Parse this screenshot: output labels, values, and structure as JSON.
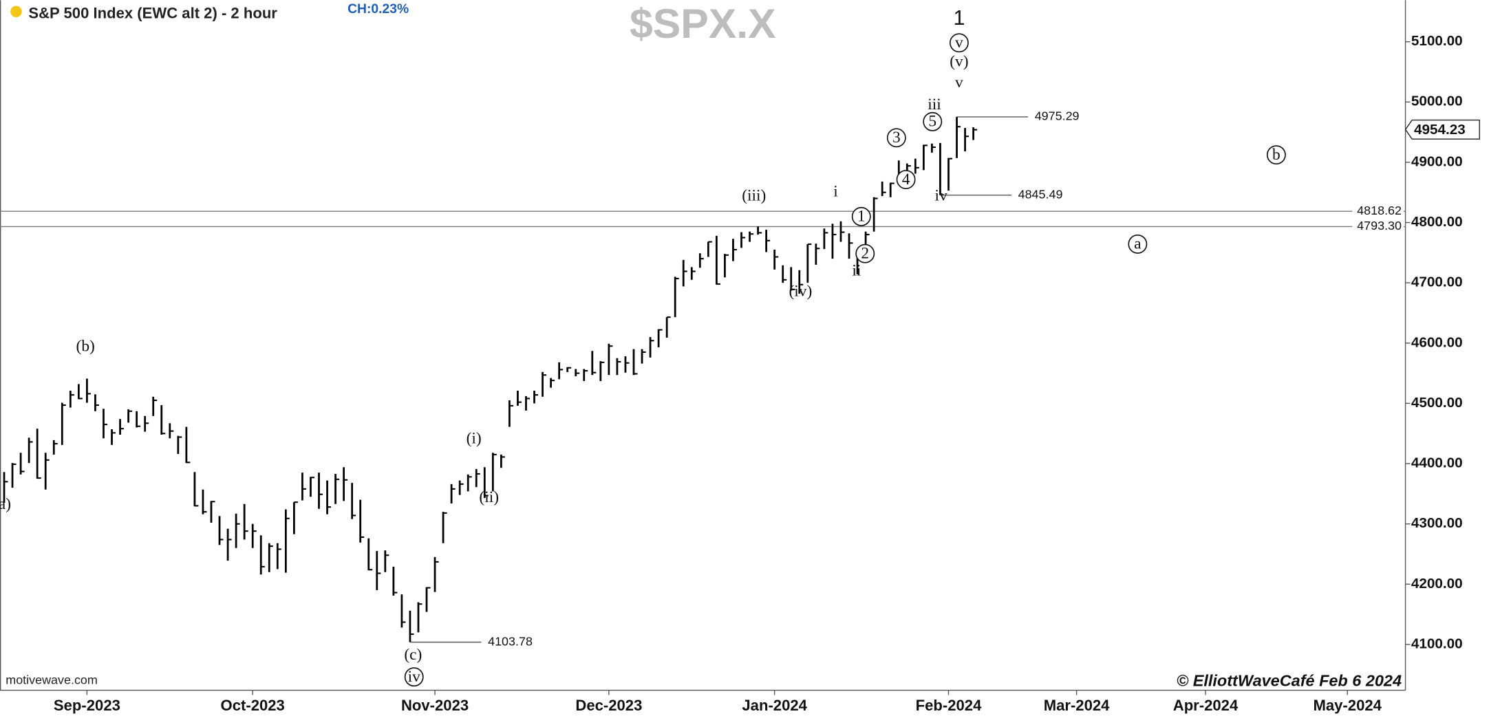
{
  "chart_data": {
    "type": "ohlc",
    "title": "S&P 500 Index (EWC alt 2) - 2 hour",
    "change_label": "CH:0.23%",
    "watermark": "$SPX.X",
    "source": "motivewave.com",
    "credit": "© ElliottWaveCafé Feb 6 2024",
    "color": "#000000",
    "x": [
      -10,
      -9,
      -8,
      -7,
      -6,
      -5,
      -4,
      -3,
      -2,
      -1,
      0,
      1,
      2,
      3,
      4,
      5,
      6,
      7,
      8,
      9,
      10,
      11,
      12,
      13,
      14,
      15,
      16,
      17,
      18,
      19,
      20,
      21,
      22,
      23,
      24,
      25,
      26,
      27,
      28,
      29,
      30,
      31,
      32,
      33,
      34,
      35,
      36,
      37,
      38,
      39,
      40,
      41,
      42,
      43,
      44,
      45,
      46,
      47,
      48,
      49,
      50,
      51,
      52,
      53,
      54,
      55,
      56,
      57,
      58,
      59,
      60,
      61,
      62,
      63,
      64,
      65,
      66,
      67,
      68,
      69,
      70,
      71,
      72,
      73,
      74,
      75,
      76,
      77,
      78,
      79,
      80,
      81,
      82,
      83,
      84,
      85,
      86,
      87,
      88,
      89,
      90,
      91,
      92,
      93,
      94,
      95,
      96,
      97,
      98,
      99,
      100,
      101,
      102,
      103,
      104,
      105,
      106,
      107
    ],
    "high": [
      4386,
      4401,
      4418,
      4443,
      4458,
      4418,
      4439,
      4501,
      4521,
      4532,
      4541,
      4515,
      4491,
      4457,
      4474,
      4490,
      4487,
      4479,
      4511,
      4497,
      4467,
      4446,
      4461,
      4386,
      4357,
      4338,
      4313,
      4292,
      4317,
      4333,
      4300,
      4281,
      4268,
      4268,
      4324,
      4336,
      4385,
      4378,
      4385,
      4372,
      4383,
      4394,
      4368,
      4340,
      4276,
      4255,
      4256,
      4229,
      4183,
      4156,
      4170,
      4195,
      4245,
      4320,
      4366,
      4372,
      4382,
      4391,
      4394,
      4418,
      4415,
      4505,
      4521,
      4512,
      4521,
      4552,
      4542,
      4568,
      4560,
      4557,
      4557,
      4587,
      4570,
      4599,
      4575,
      4578,
      4590,
      4590,
      4610,
      4623,
      4643,
      4710,
      4738,
      4726,
      4749,
      4768,
      4778,
      4748,
      4773,
      4784,
      4785,
      4793.3,
      4788,
      4755,
      4729,
      4726,
      4721,
      4764,
      4765,
      4790,
      4798,
      4802,
      4782,
      4744,
      4785,
      4842,
      4868,
      4866,
      4903,
      4898,
      4906,
      4929,
      4931,
      4932,
      4907,
      4975.29,
      4957,
      4958
    ],
    "low": [
      4335,
      4360,
      4382,
      4401,
      4375,
      4357,
      4415,
      4431,
      4493,
      4507,
      4501,
      4487,
      4442,
      4431,
      4448,
      4468,
      4460,
      4453,
      4479,
      4448,
      4442,
      4416,
      4401,
      4329,
      4316,
      4302,
      4265,
      4239,
      4260,
      4274,
      4260,
      4216,
      4220,
      4225,
      4219,
      4283,
      4339,
      4345,
      4325,
      4316,
      4333,
      4338,
      4308,
      4269,
      4223,
      4190,
      4220,
      4181,
      4128,
      4103.78,
      4120,
      4154,
      4187,
      4268,
      4334,
      4348,
      4354,
      4361,
      4343,
      4354,
      4393,
      4461,
      4496,
      4488,
      4500,
      4511,
      4526,
      4540,
      4552,
      4545,
      4537,
      4547,
      4537,
      4547,
      4547,
      4551,
      4547,
      4566,
      4576,
      4593,
      4609,
      4643,
      4694,
      4705,
      4725,
      4743,
      4697,
      4709,
      4736,
      4758,
      4768,
      4780,
      4751,
      4722,
      4700,
      4687,
      4682,
      4700,
      4730,
      4756,
      4740,
      4768,
      4740,
      4714,
      4740,
      4785,
      4844,
      4842,
      4865,
      4870,
      4881,
      4887,
      4916,
      4845.49,
      4853,
      4907,
      4918,
      4937
    ],
    "close": [
      4370,
      4399,
      4387,
      4436,
      4376,
      4406,
      4433,
      4497,
      4514,
      4508,
      4516,
      4497,
      4465,
      4451,
      4458,
      4487,
      4462,
      4467,
      4505,
      4450,
      4454,
      4444,
      4402,
      4330,
      4320,
      4337,
      4274,
      4274,
      4300,
      4288,
      4288,
      4229,
      4263,
      4258,
      4309,
      4336,
      4358,
      4377,
      4349,
      4328,
      4374,
      4373,
      4314,
      4278,
      4224,
      4218,
      4248,
      4186,
      4137,
      4117,
      4167,
      4194,
      4237,
      4318,
      4358,
      4366,
      4378,
      4383,
      4347,
      4415,
      4411,
      4496,
      4502,
      4508,
      4514,
      4547,
      4538,
      4556,
      4559,
      4550,
      4554,
      4551,
      4568,
      4595,
      4569,
      4567,
      4549,
      4585,
      4604,
      4622,
      4643,
      4707,
      4719,
      4719,
      4740,
      4768,
      4698,
      4746,
      4755,
      4775,
      4781,
      4783,
      4770,
      4743,
      4705,
      4689,
      4697,
      4764,
      4757,
      4783,
      4780,
      4784,
      4766,
      4739,
      4780,
      4840,
      4850,
      4865,
      4869,
      4894,
      4891,
      4928,
      4925,
      4846,
      4906,
      4959,
      4943,
      4954
    ],
    "xlim": [
      -10.5,
      174
    ],
    "xticks": [
      {
        "value": 0,
        "label": "Sep-2023"
      },
      {
        "value": 20,
        "label": "Oct-2023"
      },
      {
        "value": 42,
        "label": "Nov-2023"
      },
      {
        "value": 63,
        "label": "Dec-2023"
      },
      {
        "value": 83,
        "label": "Jan-2024"
      },
      {
        "value": 104,
        "label": "Feb-2024"
      },
      {
        "value": 123,
        "label": "Mar-2024"
      },
      {
        "value": 143,
        "label": "Apr-2024"
      },
      {
        "value": 165,
        "label": "May-2024"
      }
    ],
    "ylim": [
      4024,
      5169
    ],
    "yticks": [
      {
        "value": 4100,
        "label": "4100.00"
      },
      {
        "value": 4200,
        "label": "4200.00"
      },
      {
        "value": 4300,
        "label": "4300.00"
      },
      {
        "value": 4400,
        "label": "4400.00"
      },
      {
        "value": 4500,
        "label": "4500.00"
      },
      {
        "value": 4600,
        "label": "4600.00"
      },
      {
        "value": 4700,
        "label": "4700.00"
      },
      {
        "value": 4800,
        "label": "4800.00"
      },
      {
        "value": 4900,
        "label": "4900.00"
      },
      {
        "value": 5000,
        "label": "5000.00"
      },
      {
        "value": 5100,
        "label": "5100.00"
      }
    ],
    "last_price": 4954.23,
    "hlines": [
      4818.62,
      {
        "value": 4793.3,
        "label": "4793.30"
      }
    ],
    "price_marks": [
      4975.29,
      4845.49,
      4103.78
    ],
    "annotations": [
      {
        "text": "1",
        "circled": false
      },
      {
        "text": "v",
        "circled": true
      },
      {
        "text": "(v)",
        "circled": false
      },
      {
        "text": "v",
        "circled": false
      },
      {
        "text": "iii",
        "circled": false
      },
      {
        "text": "5",
        "circled": true
      },
      {
        "text": "3",
        "circled": true
      },
      {
        "text": "4",
        "circled": true
      },
      {
        "text": "iv",
        "circled": false
      },
      {
        "text": "i",
        "circled": false
      },
      {
        "text": "1",
        "circled": true
      },
      {
        "text": "2",
        "circled": true
      },
      {
        "text": "ii",
        "circled": false
      },
      {
        "text": "(iii)",
        "circled": false
      },
      {
        "text": "(iv)",
        "circled": false
      },
      {
        "text": "b",
        "circled": true
      },
      {
        "text": "a",
        "circled": true
      },
      {
        "text": "(b)",
        "circled": false
      },
      {
        "text": "a)",
        "circled": false
      },
      {
        "text": "(i)",
        "circled": false
      },
      {
        "text": "(ii)",
        "circled": false
      },
      {
        "text": "(c)",
        "circled": false
      },
      {
        "text": "iv",
        "circled": true
      }
    ]
  }
}
